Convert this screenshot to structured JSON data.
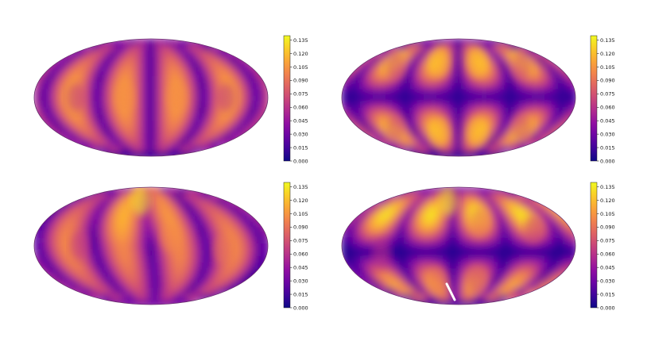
{
  "chart_data": [
    {
      "type": "heatmap",
      "projection": "mollweide",
      "colormap": "plasma",
      "title": "",
      "xlabel": "",
      "ylabel": "",
      "colorbar": {
        "min": 0.0,
        "max": 0.14,
        "ticks": [
          "0.000",
          "0.015",
          "0.030",
          "0.045",
          "0.060",
          "0.075",
          "0.090",
          "0.105",
          "0.120",
          "0.135"
        ]
      },
      "pattern": "vertical lobes: bright meridian bands at lon -40 and +40, dark nodal meridians at lon 0, +/-80, +/-150",
      "lobes": [
        {
          "lon": -40,
          "lat": 0,
          "value": 0.1
        },
        {
          "lon": 40,
          "lat": 0,
          "value": 0.1
        },
        {
          "lon": 115,
          "lat": 0,
          "value": 0.065
        },
        {
          "lon": -115,
          "lat": 0,
          "value": 0.065
        }
      ]
    },
    {
      "type": "heatmap",
      "projection": "mollweide",
      "colormap": "plasma",
      "title": "",
      "xlabel": "",
      "ylabel": "",
      "colorbar": {
        "min": 0.0,
        "max": 0.14,
        "ticks": [
          "0.000",
          "0.015",
          "0.030",
          "0.045",
          "0.060",
          "0.075",
          "0.090",
          "0.105",
          "0.120",
          "0.135"
        ]
      },
      "pattern": "quadrant lobes: dark equator and dark nodal meridians, bright lobes in all four hemisphere quadrants",
      "lobes": [
        {
          "lon": -35,
          "lat": 45,
          "value": 0.115
        },
        {
          "lon": 35,
          "lat": 45,
          "value": 0.115
        },
        {
          "lon": -35,
          "lat": -45,
          "value": 0.115
        },
        {
          "lon": 35,
          "lat": -45,
          "value": 0.115
        },
        {
          "lon": 115,
          "lat": 40,
          "value": 0.075
        },
        {
          "lon": -115,
          "lat": 40,
          "value": 0.075
        },
        {
          "lon": 115,
          "lat": -40,
          "value": 0.075
        },
        {
          "lon": -115,
          "lat": -40,
          "value": 0.075
        }
      ]
    },
    {
      "type": "heatmap",
      "projection": "mollweide",
      "colormap": "plasma",
      "title": "",
      "xlabel": "",
      "ylabel": "",
      "colorbar": {
        "min": 0.0,
        "max": 0.14,
        "ticks": [
          "0.000",
          "0.015",
          "0.030",
          "0.045",
          "0.060",
          "0.075",
          "0.090",
          "0.105",
          "0.120",
          "0.135"
        ]
      },
      "pattern": "mixed vertical lobes with a bright peak near the north pole and a warm lobe on the right",
      "lobes": [
        {
          "lon": -25,
          "lat": 60,
          "value": 0.135
        },
        {
          "lon": 30,
          "lat": 10,
          "value": 0.1
        },
        {
          "lon": 110,
          "lat": -5,
          "value": 0.09
        },
        {
          "lon": -110,
          "lat": 0,
          "value": 0.065
        }
      ]
    },
    {
      "type": "heatmap",
      "projection": "mollweide",
      "colormap": "plasma",
      "title": "",
      "xlabel": "",
      "ylabel": "",
      "colorbar": {
        "min": 0.0,
        "max": 0.14,
        "ticks": [
          "0.000",
          "0.015",
          "0.030",
          "0.045",
          "0.060",
          "0.075",
          "0.090",
          "0.105",
          "0.120",
          "0.135"
        ]
      },
      "pattern": "mixed lobes with a bright peak near the north pole, dark nodal lines, white artifact streak near the south pole",
      "lobes": [
        {
          "lon": -25,
          "lat": 60,
          "value": 0.135
        },
        {
          "lon": 35,
          "lat": 30,
          "value": 0.09
        },
        {
          "lon": -40,
          "lat": -45,
          "value": 0.09
        },
        {
          "lon": 35,
          "lat": -45,
          "value": 0.075
        },
        {
          "lon": 120,
          "lat": 20,
          "value": 0.07
        },
        {
          "lon": -120,
          "lat": -10,
          "value": 0.06
        }
      ]
    }
  ]
}
